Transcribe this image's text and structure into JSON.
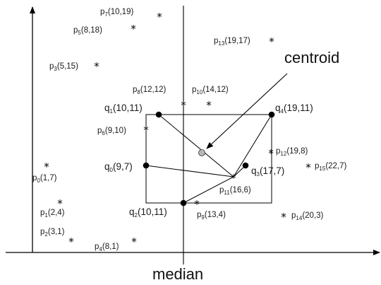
{
  "labels": {
    "centroid": "centroid",
    "median": "median"
  },
  "points": [
    {
      "id": "p0",
      "letter": "p",
      "sub": "0",
      "coords": "(1,7)"
    },
    {
      "id": "p1",
      "letter": "p",
      "sub": "1",
      "coords": "(2,4)"
    },
    {
      "id": "p2",
      "letter": "p",
      "sub": "2",
      "coords": "(3,1)"
    },
    {
      "id": "p3",
      "letter": "p",
      "sub": "3",
      "coords": "(5,15)"
    },
    {
      "id": "p4",
      "letter": "p",
      "sub": "4",
      "coords": "(8,1)"
    },
    {
      "id": "p5",
      "letter": "p",
      "sub": "5",
      "coords": "(8,18)"
    },
    {
      "id": "p6",
      "letter": "p",
      "sub": "6",
      "coords": "(9,10)"
    },
    {
      "id": "p7",
      "letter": "p",
      "sub": "7",
      "coords": "(10,19)"
    },
    {
      "id": "p8",
      "letter": "p",
      "sub": "8",
      "coords": "(12,12)"
    },
    {
      "id": "p9",
      "letter": "p",
      "sub": "9",
      "coords": "(13,4)"
    },
    {
      "id": "p10",
      "letter": "p",
      "sub": "10",
      "coords": "(14,12)"
    },
    {
      "id": "p11",
      "letter": "p",
      "sub": "11",
      "coords": "(16,6)"
    },
    {
      "id": "p12",
      "letter": "p",
      "sub": "12",
      "coords": "(19,8)"
    },
    {
      "id": "p13",
      "letter": "p",
      "sub": "13",
      "coords": "(19,17)"
    },
    {
      "id": "p14",
      "letter": "p",
      "sub": "14",
      "coords": "(20,3)"
    },
    {
      "id": "p15",
      "letter": "p",
      "sub": "15",
      "coords": "(22,7)"
    }
  ],
  "queries": [
    {
      "id": "q0",
      "letter": "q",
      "sub": "0",
      "coords": "(9,7)"
    },
    {
      "id": "q1",
      "letter": "q",
      "sub": "1",
      "coords": "(10,11)"
    },
    {
      "id": "q2",
      "letter": "q",
      "sub": "2",
      "coords": "(10,11)"
    },
    {
      "id": "q3",
      "letter": "q",
      "sub": "3",
      "coords": "(17,7)"
    },
    {
      "id": "q4",
      "letter": "q",
      "sub": "4",
      "coords": "(19,11)"
    }
  ]
}
